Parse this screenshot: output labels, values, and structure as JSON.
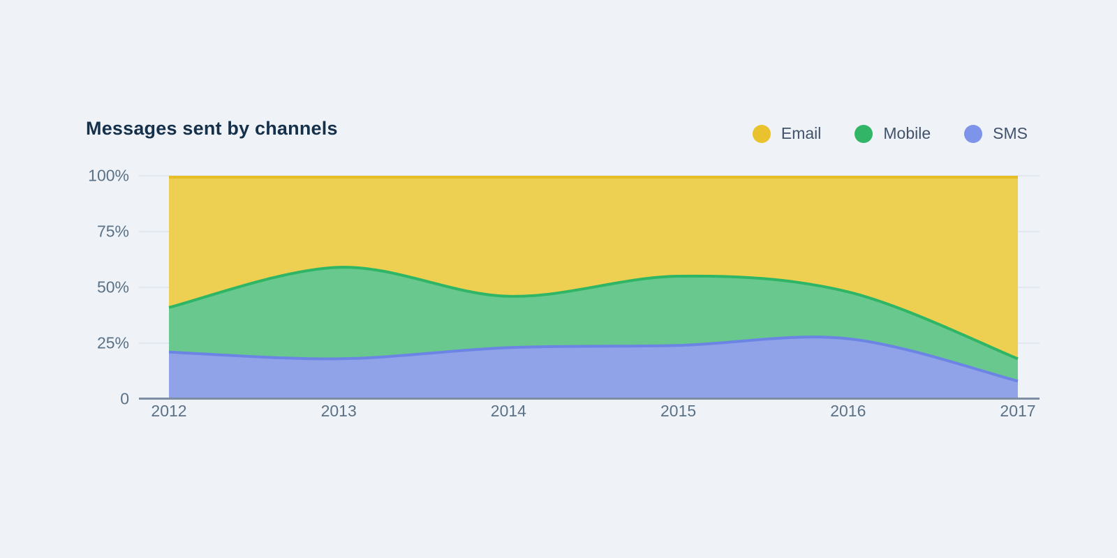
{
  "chart": {
    "title": "Messages sent by channels"
  },
  "legend": {
    "items": [
      {
        "label": "Email",
        "color": "#e9c22d"
      },
      {
        "label": "Mobile",
        "color": "#33b567"
      },
      {
        "label": "SMS",
        "color": "#7e93ea"
      }
    ]
  },
  "axes": {
    "y": {
      "ticks": [
        "100%",
        "75%",
        "50%",
        "25%",
        "0"
      ]
    },
    "x": {
      "ticks": [
        "2012",
        "2013",
        "2014",
        "2015",
        "2016",
        "2017"
      ]
    }
  },
  "chart_data": {
    "type": "area",
    "variant": "percent-stacked",
    "title": "Messages sent by channels",
    "x": [
      2012,
      2013,
      2014,
      2015,
      2016,
      2017
    ],
    "xlabel": "",
    "ylabel": "",
    "ylim": [
      0,
      100
    ],
    "grid": true,
    "legend_position": "top-right",
    "series": [
      {
        "name": "Email",
        "values": [
          59,
          41,
          54,
          45,
          52,
          82
        ],
        "fill": "#edcf52",
        "stroke": "#e7bd25"
      },
      {
        "name": "Mobile",
        "values": [
          20,
          41,
          23,
          31,
          21,
          10
        ],
        "fill": "#69c88d",
        "stroke": "#2eb566"
      },
      {
        "name": "SMS",
        "values": [
          21,
          18,
          23,
          24,
          27,
          8
        ],
        "fill": "#90a3e9",
        "stroke": "#6c84e4"
      }
    ],
    "stack_order_bottom_to_top": [
      "SMS",
      "Mobile",
      "Email"
    ],
    "cumulative_tops": {
      "sms_top": [
        21,
        18,
        23,
        24,
        27,
        8
      ],
      "mobile_top": [
        41,
        59,
        46,
        55,
        48,
        18
      ],
      "email_top": [
        100,
        100,
        100,
        100,
        100,
        100
      ]
    },
    "colors": {
      "background": "#eff3f8",
      "gridline": "#e2e8f0",
      "zero_axis": "#7e8ea2",
      "tick_label": "#5b7186",
      "title": "#15304b",
      "legend_label": "#42526b"
    }
  }
}
